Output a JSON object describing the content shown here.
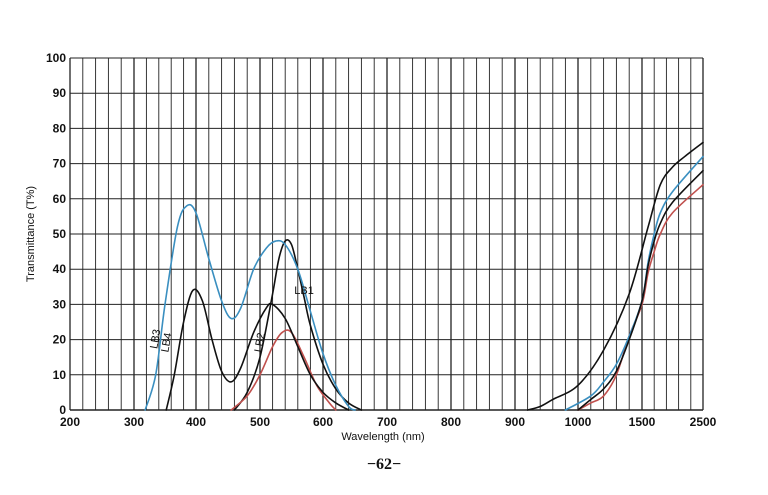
{
  "chart_data": {
    "type": "line",
    "title": "",
    "xlabel": "Wavelength (nm)",
    "ylabel": "Transmittance (T%)",
    "x_scale": "piecewise-linear",
    "x_ticks": [
      200,
      300,
      400,
      500,
      600,
      700,
      800,
      900,
      1000,
      1500,
      2500
    ],
    "x_tick_labels": [
      "200",
      "300",
      "400",
      "500",
      "600",
      "700",
      "800",
      "900",
      "1000",
      "1500",
      "2500"
    ],
    "xlim": [
      200,
      2500
    ],
    "ylim": [
      0,
      100
    ],
    "y_ticks": [
      0,
      10,
      20,
      30,
      40,
      50,
      60,
      70,
      80,
      90,
      100
    ],
    "y_tick_labels": [
      "0",
      "10",
      "20",
      "30",
      "40",
      "50",
      "60",
      "70",
      "80",
      "90",
      "100"
    ],
    "grid": true,
    "legend": "none",
    "series": [
      {
        "name": "LB1",
        "color": "#111111",
        "segments": [
          [
            [
              460,
              0
            ],
            [
              480,
              5
            ],
            [
              500,
              15
            ],
            [
              520,
              33
            ],
            [
              530,
              43
            ],
            [
              540,
              48
            ],
            [
              550,
              47
            ],
            [
              560,
              40
            ],
            [
              570,
              32
            ],
            [
              580,
              24
            ],
            [
              600,
              13
            ],
            [
              620,
              6
            ],
            [
              640,
              2
            ],
            [
              660,
              0
            ]
          ],
          [
            [
              920,
              0
            ],
            [
              940,
              1
            ],
            [
              960,
              3
            ],
            [
              1000,
              7
            ],
            [
              1200,
              17
            ],
            [
              1400,
              33
            ],
            [
              1600,
              52
            ],
            [
              1800,
              64
            ],
            [
              2000,
              69
            ],
            [
              2200,
              72
            ],
            [
              2500,
              76
            ]
          ]
        ]
      },
      {
        "name": "LB2",
        "color": "#c0504d",
        "segments": [
          [
            [
              455,
              0
            ],
            [
              480,
              4
            ],
            [
              500,
              10
            ],
            [
              520,
              18
            ],
            [
              535,
              22
            ],
            [
              550,
              22
            ],
            [
              570,
              15
            ],
            [
              590,
              7
            ],
            [
              610,
              2
            ],
            [
              620,
              0
            ]
          ],
          [
            [
              1000,
              0
            ],
            [
              1100,
              2
            ],
            [
              1200,
              4
            ],
            [
              1300,
              10
            ],
            [
              1400,
              21
            ],
            [
              1500,
              30
            ],
            [
              1600,
              39
            ],
            [
              1700,
              45
            ],
            [
              1800,
              50
            ],
            [
              2000,
              56
            ],
            [
              2500,
              64
            ]
          ]
        ]
      },
      {
        "name": "LB3",
        "color": "#3a8fc0",
        "segments": [
          [
            [
              318,
              0
            ],
            [
              335,
              10
            ],
            [
              350,
              30
            ],
            [
              370,
              52
            ],
            [
              385,
              58
            ],
            [
              400,
              56
            ],
            [
              420,
              43
            ],
            [
              440,
              31
            ],
            [
              455,
              26
            ],
            [
              470,
              29
            ],
            [
              490,
              40
            ],
            [
              510,
              46
            ],
            [
              525,
              48
            ],
            [
              540,
              47
            ],
            [
              560,
              40
            ],
            [
              580,
              28
            ],
            [
              600,
              16
            ],
            [
              620,
              7
            ],
            [
              640,
              1
            ],
            [
              650,
              0
            ]
          ],
          [
            [
              980,
              0
            ],
            [
              1100,
              4
            ],
            [
              1200,
              8
            ],
            [
              1300,
              13
            ],
            [
              1400,
              21
            ],
            [
              1500,
              31
            ],
            [
              1600,
              42
            ],
            [
              1700,
              50
            ],
            [
              1800,
              56
            ],
            [
              2000,
              62
            ],
            [
              2500,
              72
            ]
          ]
        ]
      },
      {
        "name": "LB4",
        "color": "#111111",
        "segments": [
          [
            [
              352,
              0
            ],
            [
              365,
              10
            ],
            [
              380,
              25
            ],
            [
              395,
              34
            ],
            [
              410,
              31
            ],
            [
              425,
              20
            ],
            [
              440,
              11
            ],
            [
              455,
              8
            ],
            [
              470,
              12
            ],
            [
              490,
              22
            ],
            [
              510,
              29
            ],
            [
              520,
              30
            ],
            [
              540,
              26
            ],
            [
              560,
              18
            ],
            [
              580,
              10
            ],
            [
              600,
              5
            ],
            [
              620,
              2
            ],
            [
              640,
              0
            ]
          ],
          [
            [
              1000,
              0
            ],
            [
              1100,
              3
            ],
            [
              1200,
              6
            ],
            [
              1300,
              11
            ],
            [
              1400,
              20
            ],
            [
              1500,
              31
            ],
            [
              1600,
              41
            ],
            [
              1700,
              48
            ],
            [
              1800,
              53
            ],
            [
              2000,
              59
            ],
            [
              2500,
              68
            ]
          ]
        ]
      }
    ],
    "annotations": [
      {
        "text": "LB1",
        "x": 570,
        "y": 33
      },
      {
        "text": "LB2",
        "x": 505,
        "y": 19
      },
      {
        "text": "LB3",
        "x": 340,
        "y": 20
      },
      {
        "text": "LB4",
        "x": 358,
        "y": 19
      }
    ]
  },
  "page_number": "−62−"
}
